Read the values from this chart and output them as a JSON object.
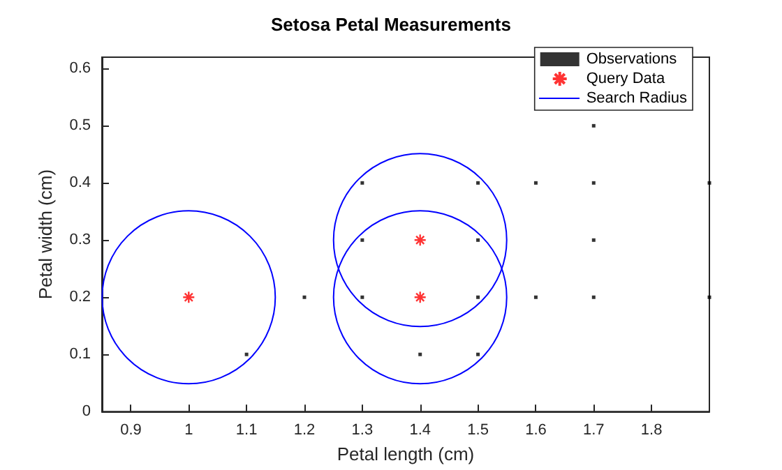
{
  "chart_data": {
    "type": "scatter",
    "title": "Setosa Petal Measurements",
    "xlabel": "Petal length (cm)",
    "ylabel": "Petal width (cm)",
    "xlim": [
      0.85,
      1.9
    ],
    "ylim": [
      0,
      0.62
    ],
    "xticks": [
      0.9,
      1,
      1.1,
      1.2,
      1.3,
      1.4,
      1.5,
      1.6,
      1.7,
      1.8
    ],
    "yticks": [
      0,
      0.1,
      0.2,
      0.3,
      0.4,
      0.5,
      0.6
    ],
    "grid": false,
    "legend": "top right",
    "annotations": [
      "Search Radius"
    ],
    "series": [
      {
        "name": "Observations",
        "marker": "square",
        "color": "#000000",
        "x": [
          1.1,
          1.2,
          1.3,
          1.3,
          1.3,
          1.4,
          1.5,
          1.5,
          1.5,
          1.5,
          1.6,
          1.6,
          1.7,
          1.7,
          1.7,
          1.7,
          1.9,
          1.9
        ],
        "values": [
          0.1,
          0.2,
          0.4,
          0.3,
          0.2,
          0.1,
          0.4,
          0.3,
          0.2,
          0.1,
          0.4,
          0.2,
          0.5,
          0.4,
          0.3,
          0.2,
          0.4,
          0.2
        ]
      },
      {
        "name": "Query Data",
        "type": "scatter",
        "marker": "cross",
        "color": "#ff0000",
        "x": [
          1,
          1.4,
          1.4
        ],
        "values": [
          0.2,
          0.3,
          0.2
        ]
      }
    ]
  }
}
